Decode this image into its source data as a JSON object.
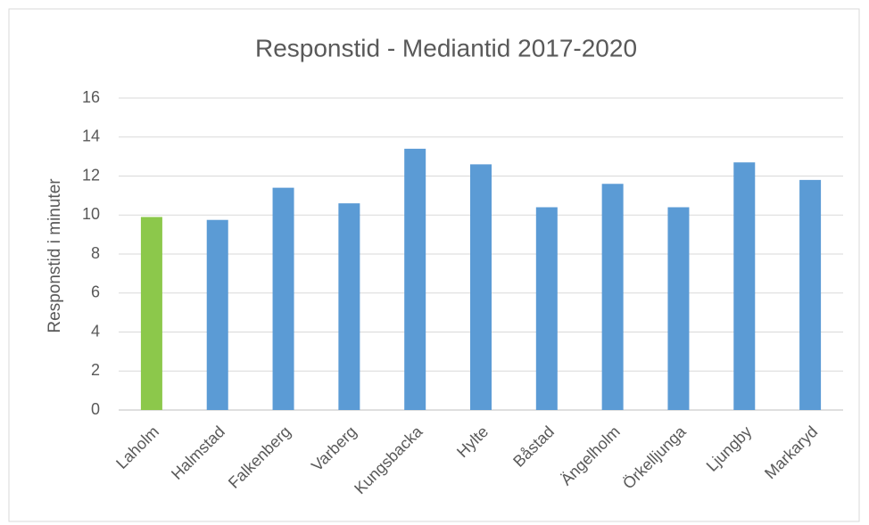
{
  "chart_data": {
    "type": "bar",
    "title": "Responstid - Mediantid 2017-2020",
    "ylabel": "Responstid i minuter",
    "categories": [
      "Laholm",
      "Halmstad",
      "Falkenberg",
      "Varberg",
      "Kungsbacka",
      "Hylte",
      "Båstad",
      "Ängelholm",
      "Örkelljunga",
      "Ljungby",
      "Markaryd"
    ],
    "values": [
      9.9,
      9.75,
      11.4,
      10.6,
      13.4,
      12.6,
      10.4,
      11.6,
      10.4,
      12.7,
      11.8
    ],
    "colors": [
      "#8cc84b",
      "#5b9bd5",
      "#5b9bd5",
      "#5b9bd5",
      "#5b9bd5",
      "#5b9bd5",
      "#5b9bd5",
      "#5b9bd5",
      "#5b9bd5",
      "#5b9bd5",
      "#5b9bd5"
    ],
    "ylim": [
      0,
      16
    ],
    "yticks": [
      0,
      2,
      4,
      6,
      8,
      10,
      12,
      14,
      16
    ],
    "grid": true
  }
}
